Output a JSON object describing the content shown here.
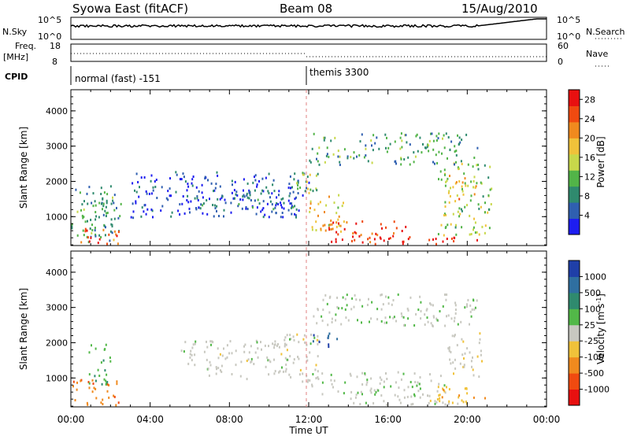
{
  "header": {
    "station": "Syowa East (fitACF)",
    "beam": "Beam 08",
    "date": "15/Aug/2010"
  },
  "status_panel": {
    "left_label": "N.Sky",
    "right_label": "N.Search",
    "left_ticks": [
      "10^5",
      "10^0"
    ],
    "right_ticks": [
      "10^5",
      "10^0"
    ]
  },
  "freq_panel": {
    "label_line1": "Freq.",
    "label_line2": "[MHz]",
    "left_ticks": [
      "18",
      "8"
    ],
    "right_ticks": [
      "60",
      "0"
    ],
    "right_label": "Nave"
  },
  "cpid_panel": {
    "label": "CPID",
    "modes": [
      "normal (fast) -151",
      "themis 3300"
    ]
  },
  "x_axis": {
    "label": "Time UT",
    "ticks": [
      "00:00",
      "04:00",
      "08:00",
      "12:00",
      "16:00",
      "20:00",
      "00:00"
    ]
  },
  "chart_data": [
    {
      "type": "heatmap",
      "title": "",
      "xlabel": "Time UT",
      "ylabel": "Slant Range [km]",
      "x_ticks": [
        "00:00",
        "04:00",
        "08:00",
        "12:00",
        "16:00",
        "20:00",
        "00:00"
      ],
      "y_ticks": [
        1000,
        2000,
        3000,
        4000
      ],
      "ylim": [
        180,
        4600
      ],
      "colorbar": {
        "label": "Power [dB]",
        "ticks": [
          4,
          8,
          12,
          16,
          20,
          24,
          28
        ],
        "range": [
          0,
          30
        ],
        "colors": [
          "#1d1df0",
          "#2f5fb0",
          "#2f8a6e",
          "#52b448",
          "#c8d84a",
          "#f0c23a",
          "#f08a1e",
          "#f04a10",
          "#e81010"
        ]
      },
      "regions": [
        {
          "t0": 0.0,
          "t1": 2.5,
          "r0": 300,
          "r1": 1900,
          "v": 9
        },
        {
          "t0": 0.0,
          "t1": 2.4,
          "r0": 250,
          "r1": 700,
          "v": 24
        },
        {
          "t0": 1.0,
          "t1": 1.8,
          "r0": 400,
          "r1": 2000,
          "v": 10
        },
        {
          "t0": 3.0,
          "t1": 12.0,
          "r0": 1000,
          "r1": 2300,
          "v": 4
        },
        {
          "t0": 6.0,
          "t1": 11.5,
          "r0": 1100,
          "r1": 1800,
          "v": 6
        },
        {
          "t0": 11.3,
          "t1": 12.6,
          "r0": 1500,
          "r1": 2300,
          "v": 14
        },
        {
          "t0": 12.0,
          "t1": 13.8,
          "r0": 600,
          "r1": 1700,
          "v": 18
        },
        {
          "t0": 12.5,
          "t1": 17.0,
          "r0": 300,
          "r1": 900,
          "v": 26
        },
        {
          "t0": 13.5,
          "t1": 20.5,
          "r0": 250,
          "r1": 450,
          "v": 28
        },
        {
          "t0": 18.5,
          "t1": 21.2,
          "r0": 500,
          "r1": 2600,
          "v": 14
        },
        {
          "t0": 19.0,
          "t1": 20.5,
          "r0": 1500,
          "r1": 2200,
          "v": 19
        },
        {
          "t0": 12.0,
          "t1": 20.5,
          "r0": 2500,
          "r1": 3400,
          "v": 10
        }
      ]
    },
    {
      "type": "heatmap",
      "title": "",
      "xlabel": "Time UT",
      "ylabel": "Slant Range [km]",
      "x_ticks": [
        "00:00",
        "04:00",
        "08:00",
        "12:00",
        "16:00",
        "20:00",
        "00:00"
      ],
      "y_ticks": [
        1000,
        2000,
        3000,
        4000
      ],
      "ylim": [
        180,
        4600
      ],
      "colorbar": {
        "label": "Velocity [m s^-1]",
        "ticks": [
          "1000",
          "500",
          "100",
          "25",
          "-25",
          "-100",
          "-500",
          "-1000"
        ],
        "range": [
          -1200,
          1200
        ],
        "colors": [
          "#1f3fa8",
          "#2f6fa0",
          "#2f8a6e",
          "#52b848",
          "#c8c8c0",
          "#f0c23a",
          "#f08a1e",
          "#f04a10",
          "#e81010"
        ]
      },
      "regions": [
        {
          "t0": 0.0,
          "t1": 2.4,
          "r0": 250,
          "r1": 1000,
          "v": -600
        },
        {
          "t0": 0.8,
          "t1": 2.0,
          "r0": 800,
          "r1": 2000,
          "v": 300
        },
        {
          "t0": 5.5,
          "t1": 11.0,
          "r0": 1000,
          "r1": 2100,
          "v": 0
        },
        {
          "t0": 10.5,
          "t1": 12.5,
          "r0": 900,
          "r1": 2300,
          "v": 5
        },
        {
          "t0": 12.0,
          "t1": 13.5,
          "r0": 1900,
          "r1": 2300,
          "v": 900
        },
        {
          "t0": 12.0,
          "t1": 19.0,
          "r0": 500,
          "r1": 1200,
          "v": 80
        },
        {
          "t0": 14.0,
          "t1": 19.5,
          "r0": 250,
          "r1": 500,
          "v": 0
        },
        {
          "t0": 18.0,
          "t1": 21.2,
          "r0": 300,
          "r1": 800,
          "v": -300
        },
        {
          "t0": 19.0,
          "t1": 20.8,
          "r0": 1000,
          "r1": 2300,
          "v": -80
        },
        {
          "t0": 12.0,
          "t1": 20.5,
          "r0": 2500,
          "r1": 3400,
          "v": 60
        }
      ]
    }
  ]
}
